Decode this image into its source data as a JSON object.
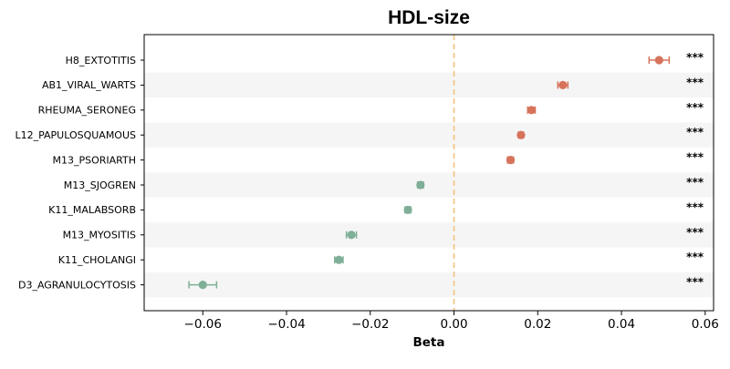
{
  "chart_data": {
    "type": "forest",
    "title": "HDL-size",
    "xlabel": "Beta",
    "ylabel": "",
    "xlim": [
      -0.074,
      0.062
    ],
    "xticks": [
      -0.06,
      -0.04,
      -0.02,
      0.0,
      0.02,
      0.04,
      0.06
    ],
    "xtick_labels": [
      "−0.06",
      "−0.04",
      "−0.02",
      "0.00",
      "0.02",
      "0.04",
      "0.06"
    ],
    "reference_line": 0,
    "colors": {
      "positive": "#d6735a",
      "negative": "#7faf96",
      "reference": "#f5c27d",
      "band": "#f5f5f5"
    },
    "rows": [
      {
        "label": "H8_EXTOTITIS",
        "beta": 0.049,
        "ci_low": 0.0466,
        "ci_high": 0.0514,
        "sig": "***"
      },
      {
        "label": "AB1_VIRAL_WARTS",
        "beta": 0.026,
        "ci_low": 0.0248,
        "ci_high": 0.0272,
        "sig": "***"
      },
      {
        "label": "RHEUMA_SERONEG",
        "beta": 0.0185,
        "ci_low": 0.0176,
        "ci_high": 0.0194,
        "sig": "***"
      },
      {
        "label": "L12_PAPULOSQUAMOUS",
        "beta": 0.016,
        "ci_low": 0.0154,
        "ci_high": 0.0166,
        "sig": "***"
      },
      {
        "label": "M13_PSORIARTH",
        "beta": 0.0135,
        "ci_low": 0.0128,
        "ci_high": 0.0142,
        "sig": "***"
      },
      {
        "label": "M13_SJOGREN",
        "beta": -0.008,
        "ci_low": -0.0087,
        "ci_high": -0.0073,
        "sig": "***"
      },
      {
        "label": "K11_MALABSORB",
        "beta": -0.011,
        "ci_low": -0.0117,
        "ci_high": -0.0103,
        "sig": "***"
      },
      {
        "label": "M13_MYOSITIS",
        "beta": -0.0245,
        "ci_low": -0.0257,
        "ci_high": -0.0233,
        "sig": "***"
      },
      {
        "label": "K11_CHOLANGI",
        "beta": -0.0275,
        "ci_low": -0.0285,
        "ci_high": -0.0265,
        "sig": "***"
      },
      {
        "label": "D3_AGRANULOCYTOSIS",
        "beta": -0.06,
        "ci_low": -0.0633,
        "ci_high": -0.0567,
        "sig": "***"
      }
    ]
  }
}
